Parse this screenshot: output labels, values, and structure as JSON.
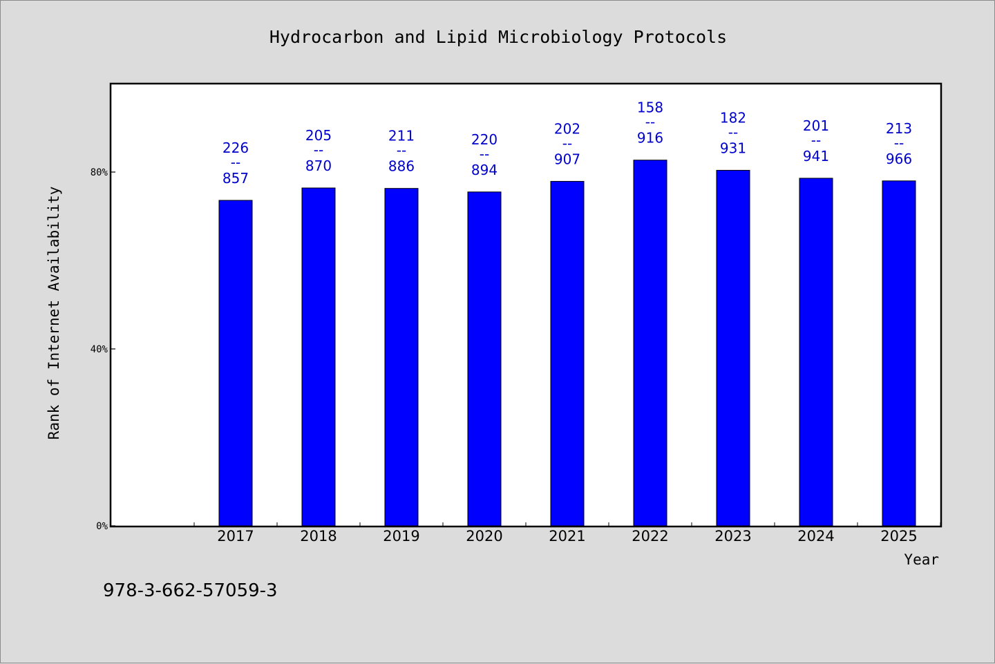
{
  "chart_data": {
    "type": "bar",
    "title": "Hydrocarbon and Lipid Microbiology Protocols",
    "xlabel": "Year",
    "ylabel": "Rank of Internet Availability",
    "categories": [
      "2017",
      "2018",
      "2019",
      "2020",
      "2021",
      "2022",
      "2023",
      "2024",
      "2025"
    ],
    "values": [
      73.6,
      76.4,
      76.3,
      75.5,
      77.9,
      82.7,
      80.4,
      78.6,
      78.0
    ],
    "labels": [
      {
        "top": "226",
        "sep": "--",
        "bottom": "857"
      },
      {
        "top": "205",
        "sep": "--",
        "bottom": "870"
      },
      {
        "top": "211",
        "sep": "--",
        "bottom": "886"
      },
      {
        "top": "220",
        "sep": "--",
        "bottom": "894"
      },
      {
        "top": "202",
        "sep": "--",
        "bottom": "907"
      },
      {
        "top": "158",
        "sep": "--",
        "bottom": "916"
      },
      {
        "top": "182",
        "sep": "--",
        "bottom": "931"
      },
      {
        "top": "201",
        "sep": "--",
        "bottom": "941"
      },
      {
        "top": "213",
        "sep": "--",
        "bottom": "966"
      }
    ],
    "yticks": [
      {
        "value": 0,
        "label": "0%"
      },
      {
        "value": 40,
        "label": "40%"
      },
      {
        "value": 80,
        "label": "80%"
      }
    ],
    "ylim": [
      0,
      100
    ],
    "grid": false,
    "legend": "none",
    "bar_color": "#0000ff",
    "label_color": "#0000cc"
  },
  "footer": {
    "isbn": "978-3-662-57059-3"
  }
}
